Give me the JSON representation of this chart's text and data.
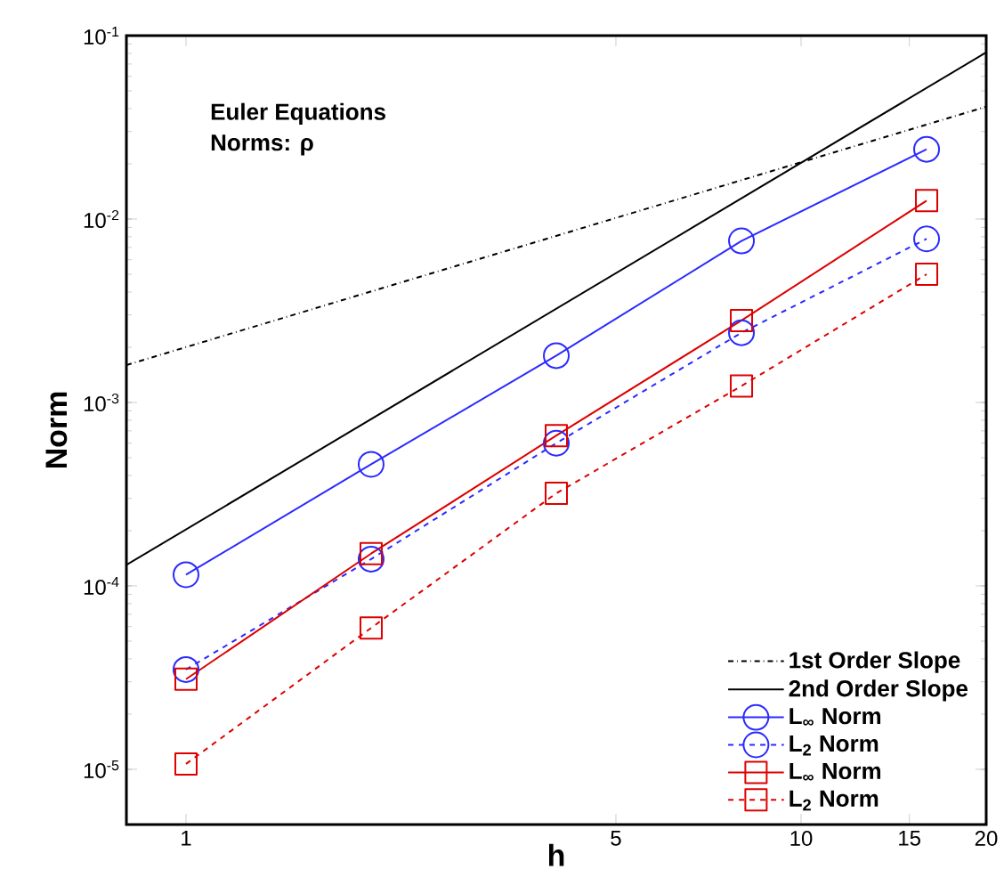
{
  "chart_data": {
    "type": "line",
    "xlabel": "h",
    "ylabel": "Norm",
    "log": "xy",
    "grid": false,
    "legend": "bottom right",
    "annotations": [
      "Euler Equations",
      "Norms: ρ"
    ],
    "xlim": [
      0.8,
      20
    ],
    "ylim": [
      5e-06,
      0.1
    ],
    "xticks": [
      1,
      5,
      10,
      15,
      20
    ],
    "yticks": [
      {
        "value": 1e-05,
        "label": "10$^{-5}$"
      },
      {
        "value": 0.0001,
        "label": "10$^{-4}$"
      },
      {
        "value": 0.001,
        "label": "10$^{-3}$"
      },
      {
        "value": 0.01,
        "label": "10$^{-2}$"
      },
      {
        "value": 0.1,
        "label": "10$^{-1}$"
      }
    ],
    "series": [
      {
        "name": "1st Order Slope",
        "color": "#000000",
        "line_style": "dashdot",
        "marker": "none",
        "x": [
          0.8,
          20
        ],
        "values": [
          0.0016,
          0.041
        ]
      },
      {
        "name": "2nd Order Slope",
        "color": "#000000",
        "line_style": "solid",
        "marker": "none",
        "x": [
          0.8,
          20
        ],
        "values": [
          0.00013,
          0.081
        ]
      },
      {
        "name": "L$_{∞}$ Norm",
        "color": "#2a2aff",
        "line_style": "solid",
        "marker": "circle",
        "x": [
          1,
          2,
          4,
          8,
          16
        ],
        "values": [
          0.000115,
          0.00046,
          0.0018,
          0.0076,
          0.024
        ]
      },
      {
        "name": "L$_{2}$ Norm",
        "color": "#2a2aff",
        "line_style": "dashed",
        "marker": "circle",
        "x": [
          1,
          2,
          4,
          8,
          16
        ],
        "values": [
          3.5e-05,
          0.00014,
          0.0006,
          0.0024,
          0.0078
        ]
      },
      {
        "name": "L$_{∞}$ Norm",
        "color": "#dd0000",
        "line_style": "solid",
        "marker": "square",
        "x": [
          1,
          2,
          4,
          8,
          16
        ],
        "values": [
          3.1e-05,
          0.00015,
          0.00066,
          0.0028,
          0.0126
        ]
      },
      {
        "name": "L$_{2}$ Norm",
        "color": "#dd0000",
        "line_style": "dashed",
        "marker": "square",
        "x": [
          1,
          2,
          4,
          8,
          16
        ],
        "values": [
          1.07e-05,
          5.9e-05,
          0.00032,
          0.00123,
          0.005
        ]
      }
    ]
  }
}
